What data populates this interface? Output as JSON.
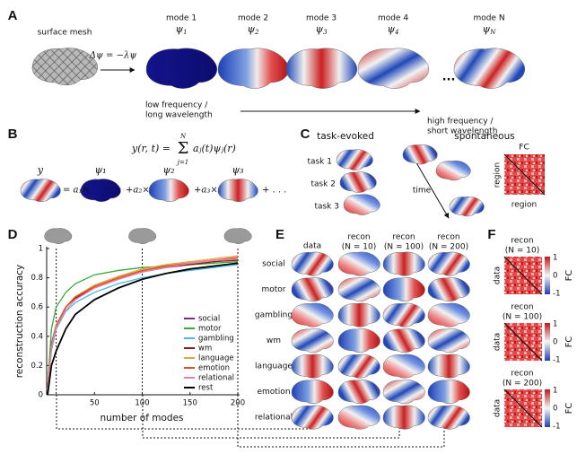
{
  "panels": {
    "A": {
      "label": "A",
      "mesh_label": "surface mesh",
      "equation": "Δψ = −λψ",
      "modes": [
        {
          "name": "mode 1",
          "symbol": "ψ",
          "sub": "1"
        },
        {
          "name": "mode 2",
          "symbol": "ψ",
          "sub": "2"
        },
        {
          "name": "mode 3",
          "symbol": "ψ",
          "sub": "3"
        },
        {
          "name": "mode 4",
          "symbol": "ψ",
          "sub": "4"
        },
        {
          "name": "mode N",
          "symbol": "ψ",
          "sub": "N"
        }
      ],
      "ellipsis": "...",
      "low": [
        "low frequency /",
        "long wavelength"
      ],
      "high": [
        "high frequency /",
        "short wavelength"
      ]
    },
    "B": {
      "label": "B",
      "equation": {
        "lhs": "y(r, t) =",
        "sum": "Σ",
        "upper": "N",
        "lower": "j=1",
        "rhs": "aⱼ(t)ψⱼ(r)"
      },
      "terms": [
        "y",
        "ψ₁",
        "ψ₂",
        "ψ₃"
      ],
      "operators": [
        "= a₁×",
        "+a₂×",
        "+a₃×",
        "+ . . ."
      ]
    },
    "C": {
      "label": "C",
      "task_title": "task-evoked",
      "spont_title": "spontaneous",
      "tasks": [
        "task 1",
        "task 2",
        "task 3"
      ],
      "time": "time",
      "fc": "FC",
      "region_y": "region",
      "region_x": "region"
    },
    "D": {
      "label": "D"
    },
    "E": {
      "label": "E",
      "columns": [
        [
          "data"
        ],
        [
          "recon",
          "(N = 10)"
        ],
        [
          "recon",
          "(N = 100)"
        ],
        [
          "recon",
          "(N = 200)"
        ]
      ],
      "rows": [
        "social",
        "motor",
        "gambling",
        "wm",
        "language",
        "emotion",
        "relational"
      ]
    },
    "F": {
      "label": "F",
      "blocks": [
        {
          "title": [
            "recon",
            "(N = 10)"
          ],
          "ylabel": "data",
          "cbar_ticks": [
            "1",
            "0",
            "-1"
          ],
          "cbar_label": "FC"
        },
        {
          "title": [
            "recon",
            "(N = 100)"
          ],
          "ylabel": "data",
          "cbar_ticks": [
            "1",
            "0",
            "-1"
          ],
          "cbar_label": "FC"
        },
        {
          "title": [
            "recon",
            "(N = 200)"
          ],
          "ylabel": "data",
          "cbar_ticks": [
            "1",
            "0",
            "-1"
          ],
          "cbar_label": "FC"
        }
      ]
    }
  },
  "chart_data": {
    "type": "line",
    "xlabel": "number of modes",
    "ylabel": "reconstruction accuracy",
    "x": [
      1,
      5,
      10,
      20,
      30,
      50,
      75,
      100,
      125,
      150,
      175,
      200
    ],
    "xlim": [
      0,
      200
    ],
    "xticks": [
      50,
      100,
      150,
      200
    ],
    "ylim": [
      0,
      1
    ],
    "yticks": [
      0,
      0.2,
      0.4,
      0.6,
      0.8,
      1
    ],
    "reference_lines": [
      10,
      100,
      200
    ],
    "legend": "lower right",
    "series": [
      {
        "name": "social",
        "color": "#7b2a8c",
        "values": [
          0.05,
          0.35,
          0.48,
          0.6,
          0.67,
          0.74,
          0.8,
          0.85,
          0.88,
          0.9,
          0.92,
          0.93
        ]
      },
      {
        "name": "motor",
        "color": "#3aa935",
        "values": [
          0.05,
          0.45,
          0.6,
          0.7,
          0.76,
          0.82,
          0.85,
          0.87,
          0.88,
          0.89,
          0.9,
          0.91
        ]
      },
      {
        "name": "gambling",
        "color": "#4db8e6",
        "values": [
          0.05,
          0.3,
          0.45,
          0.57,
          0.63,
          0.7,
          0.76,
          0.8,
          0.83,
          0.85,
          0.87,
          0.89
        ]
      },
      {
        "name": "wm",
        "color": "#8b1a1a",
        "values": [
          0.05,
          0.33,
          0.47,
          0.6,
          0.66,
          0.73,
          0.79,
          0.84,
          0.87,
          0.89,
          0.91,
          0.92
        ]
      },
      {
        "name": "language",
        "color": "#e6a23a",
        "values": [
          0.05,
          0.33,
          0.48,
          0.6,
          0.67,
          0.75,
          0.81,
          0.86,
          0.89,
          0.91,
          0.93,
          0.95
        ]
      },
      {
        "name": "emotion",
        "color": "#d9531e",
        "values": [
          0.05,
          0.32,
          0.47,
          0.6,
          0.67,
          0.74,
          0.8,
          0.85,
          0.88,
          0.9,
          0.92,
          0.94
        ]
      },
      {
        "name": "relational",
        "color": "#e87fb0",
        "values": [
          0.05,
          0.32,
          0.46,
          0.58,
          0.65,
          0.73,
          0.79,
          0.84,
          0.87,
          0.9,
          0.92,
          0.93
        ]
      },
      {
        "name": "rest",
        "color": "#000000",
        "values": [
          0,
          0.2,
          0.3,
          0.45,
          0.55,
          0.65,
          0.73,
          0.79,
          0.83,
          0.86,
          0.88,
          0.9
        ]
      }
    ]
  }
}
